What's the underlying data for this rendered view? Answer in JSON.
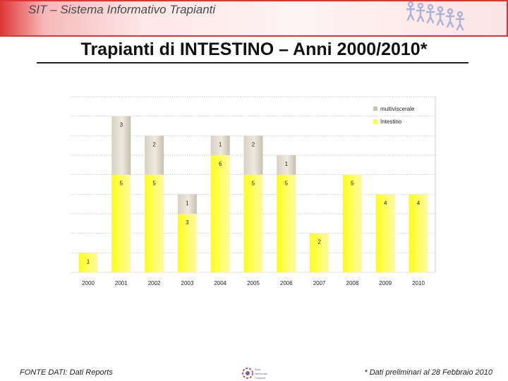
{
  "header": {
    "title": "SIT – Sistema Informativo Trapianti"
  },
  "slide": {
    "title": "Trapianti di INTESTINO – Anni 2000/2010*"
  },
  "footer": {
    "source": "FONTE DATI: Dati Reports",
    "note": "* Dati preliminari al 28 Febbraio 2010",
    "logo_text": [
      "Rete",
      "Nazionale",
      "Trapianti"
    ]
  },
  "colors": {
    "header_border": "#d93636",
    "intestino": "#ffff33",
    "multiviscerale": "#c9c2b0",
    "grid": "#b8b8b8"
  },
  "chart_data": {
    "type": "bar",
    "stacked": true,
    "title": "",
    "xlabel": "",
    "ylabel": "",
    "categories": [
      "2000",
      "2001",
      "2002",
      "2003",
      "2004",
      "2005",
      "2006",
      "2007",
      "2008",
      "2009",
      "2010"
    ],
    "series": [
      {
        "name": "Intestino",
        "color": "#ffff33",
        "values": [
          1,
          5,
          5,
          3,
          6,
          5,
          5,
          2,
          5,
          4,
          4
        ]
      },
      {
        "name": "multiviscerale",
        "color": "#c9c2b0",
        "values": [
          0,
          3,
          2,
          1,
          1,
          2,
          1,
          0,
          0,
          0,
          0
        ]
      }
    ],
    "data_labels": {
      "Intestino": [
        "1",
        "5",
        "5",
        "3",
        "6",
        "5",
        "5",
        "2",
        "5",
        "4",
        "4"
      ],
      "multiviscerale": [
        "",
        "3",
        "2",
        "1",
        "1",
        "2",
        "1",
        "",
        "",
        "",
        ""
      ]
    },
    "ylim": [
      0,
      9
    ],
    "grid": true,
    "legend_position": "top-right",
    "legend": [
      "multiviscerale",
      "Intestino"
    ]
  }
}
